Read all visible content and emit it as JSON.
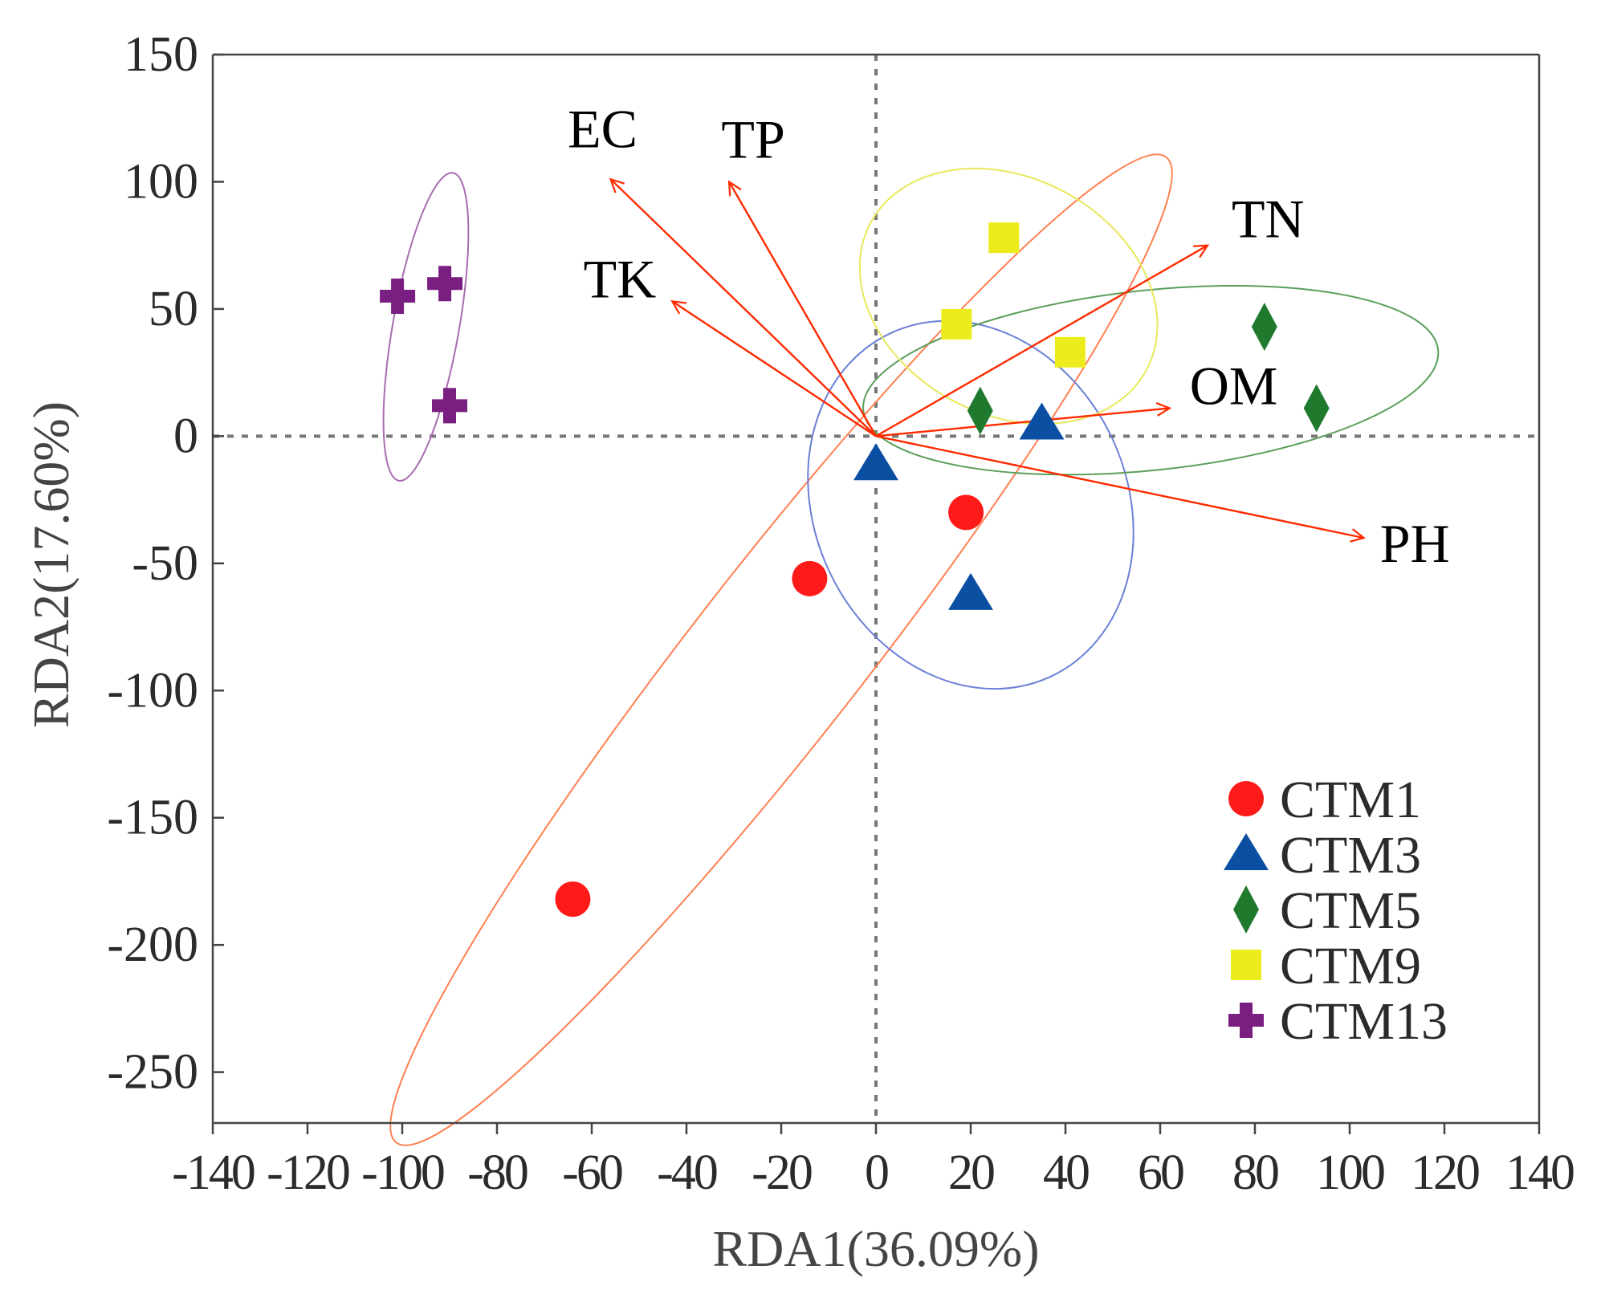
{
  "chart_data": {
    "type": "scatter",
    "subtype": "rda-biplot",
    "title": "",
    "xlabel": "RDA1(36.09%)",
    "ylabel": "RDA2(17.60%)",
    "xlim": [
      -140,
      140
    ],
    "ylim": [
      -270,
      150
    ],
    "x_ticks": [
      -140,
      -120,
      -100,
      -80,
      -60,
      -40,
      -20,
      0,
      20,
      40,
      60,
      80,
      100,
      120,
      140
    ],
    "y_ticks": [
      150,
      100,
      50,
      0,
      -50,
      -100,
      -150,
      -200,
      -250
    ],
    "x_tick_labels": [
      "-140",
      "-120",
      "-100",
      "-80",
      "-60",
      "-40",
      "-20",
      "0",
      "20",
      "40",
      "60",
      "80",
      "100",
      "120",
      "140"
    ],
    "y_tick_labels": [
      "150",
      "100",
      "50",
      "0",
      "-50",
      "-100",
      "-150",
      "-200",
      "-250"
    ],
    "grid": false,
    "reference_lines": [
      "x=0 dashed",
      "y=0 dashed"
    ],
    "legend_position": "bottom-right",
    "vectors": [
      {
        "name": "EC",
        "x": -56,
        "y": 101
      },
      {
        "name": "TP",
        "x": -31,
        "y": 100
      },
      {
        "name": "TK",
        "x": -43,
        "y": 53
      },
      {
        "name": "TN",
        "x": 70,
        "y": 75
      },
      {
        "name": "OM",
        "x": 62,
        "y": 11
      },
      {
        "name": "PH",
        "x": 103,
        "y": -40
      }
    ],
    "vector_color": "#ff2a00",
    "series": [
      {
        "name": "CTM1",
        "marker": "circle",
        "color": "#ff1a1a",
        "ellipse_color": "#ff7f50",
        "points": [
          {
            "x": -64,
            "y": -182
          },
          {
            "x": -14,
            "y": -56
          },
          {
            "x": 19,
            "y": -30
          }
        ],
        "ellipse": {
          "cx": -20,
          "cy": -84,
          "rx": 132,
          "ry": 18,
          "angle": 52
        }
      },
      {
        "name": "CTM3",
        "marker": "triangle",
        "color": "#0b4fa3",
        "ellipse_color": "#6b7fd7",
        "points": [
          {
            "x": 0,
            "y": -11
          },
          {
            "x": 35,
            "y": 5
          },
          {
            "x": 20,
            "y": -62
          }
        ],
        "ellipse": {
          "cx": 20,
          "cy": -27,
          "rx": 40,
          "ry": 33,
          "angle": -65
        }
      },
      {
        "name": "CTM5",
        "marker": "diamond",
        "color": "#1f7a2e",
        "ellipse_color": "#5a9e5a",
        "points": [
          {
            "x": 22,
            "y": 10
          },
          {
            "x": 82,
            "y": 43
          },
          {
            "x": 93,
            "y": 11
          }
        ],
        "ellipse": {
          "cx": 58,
          "cy": 22,
          "rx": 61,
          "ry": 19,
          "angle": 6
        }
      },
      {
        "name": "CTM9",
        "marker": "square",
        "color": "#ecec1c",
        "ellipse_color": "#e8e85a",
        "points": [
          {
            "x": 27,
            "y": 78
          },
          {
            "x": 17,
            "y": 44
          },
          {
            "x": 41,
            "y": 33
          }
        ],
        "ellipse": {
          "cx": 28,
          "cy": 55,
          "rx": 33,
          "ry": 25,
          "angle": -28
        }
      },
      {
        "name": "CTM13",
        "marker": "plus",
        "color": "#7a1f82",
        "ellipse_color": "#a86cb0",
        "points": [
          {
            "x": -101,
            "y": 55
          },
          {
            "x": -91,
            "y": 60
          },
          {
            "x": -90,
            "y": 12
          }
        ],
        "ellipse": {
          "cx": -95,
          "cy": 43,
          "rx": 33,
          "ry": 7,
          "angle": 80
        }
      }
    ]
  }
}
